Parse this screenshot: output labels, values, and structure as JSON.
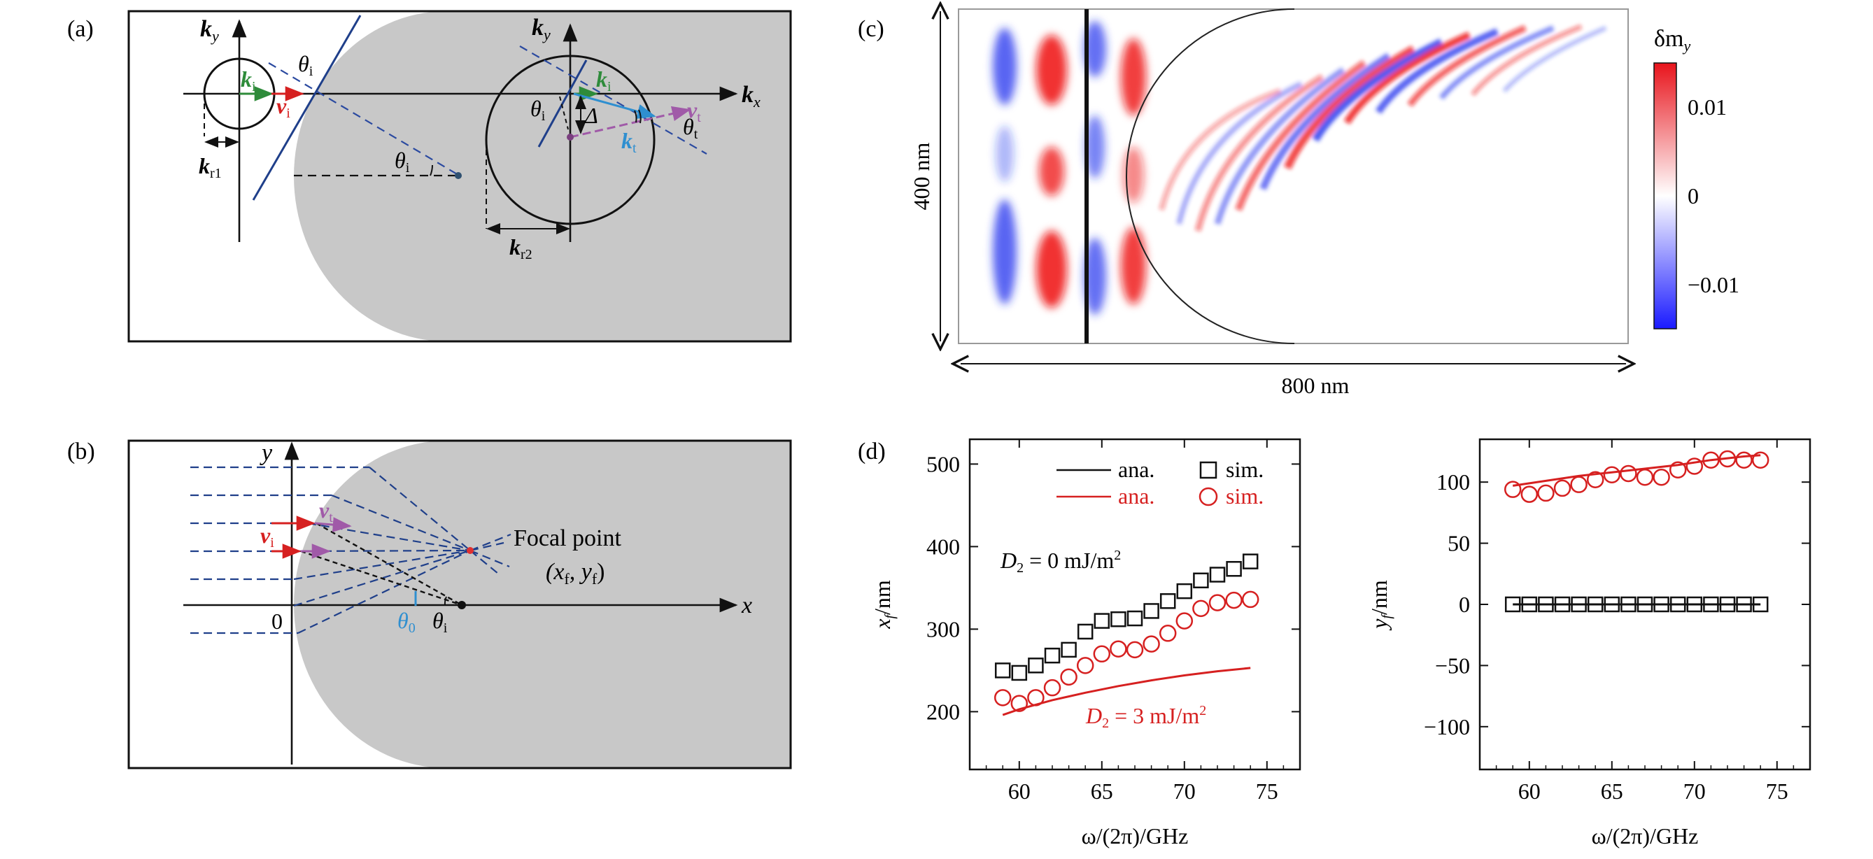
{
  "colors": {
    "gray": "#c8c8c8",
    "navy": "#1f3f8a",
    "dash_blue": "#2b4aa0",
    "green": "#2e8b3a",
    "red": "#d62020",
    "purple": "#a05aa8",
    "light_blue": "#2f8fd0",
    "black": "#111111"
  },
  "panel_a": {
    "label": "(a)",
    "ky": "k",
    "ky_sub": "y",
    "kx": "k",
    "kx_sub": "x",
    "ki": "k",
    "ki_sub": "i",
    "vi": "v",
    "vi_sub": "i",
    "kr1": "k",
    "kr1_sub": "r1",
    "kr2": "k",
    "kr2_sub": "r2",
    "kt": "k",
    "kt_sub": "t",
    "vt": "v",
    "vt_sub": "t",
    "theta_i": "θ",
    "theta_i_sub": "i",
    "theta_t": "θ",
    "theta_t_sub": "t",
    "delta": "Δ"
  },
  "panel_b": {
    "label": "(b)",
    "y_axis": "y",
    "x_axis": "x",
    "origin": "0",
    "vi": "v",
    "vi_sub": "i",
    "vt": "v",
    "vt_sub": "t",
    "focal_label": "Focal point",
    "focal_coord_open": "(x",
    "focal_coord_x_sub": "f",
    "focal_coord_mid": ", y",
    "focal_coord_y_sub": "f",
    "focal_coord_close": ")",
    "theta_0": "θ",
    "theta_0_sub": "0",
    "theta_i": "θ",
    "theta_i_sub": "i"
  },
  "panel_c": {
    "label": "(c)",
    "height_label": "400 nm",
    "width_label": "800 nm",
    "colorbar_title": "δm",
    "colorbar_title_sub": "y",
    "colorbar_ticks": [
      "0.01",
      "0",
      "−0.01"
    ]
  },
  "chart_data": [
    {
      "type": "scatter",
      "panel": "(d) left",
      "xlabel": "ω/(2π)/GHz",
      "ylabel": "x_f/nm",
      "xlim": [
        57,
        77
      ],
      "ylim": [
        130,
        530
      ],
      "xticks": [
        60,
        65,
        70,
        75
      ],
      "yticks": [
        200,
        300,
        400,
        500
      ],
      "legend": [
        {
          "line_label": "ana.",
          "marker_label": "sim.",
          "color": "black",
          "marker": "square"
        },
        {
          "line_label": "ana.",
          "marker_label": "sim.",
          "color": "red",
          "marker": "circle"
        }
      ],
      "annotations": [
        {
          "text": "D₂ = 0 mJ/m²",
          "color": "black"
        },
        {
          "text": "D₂ = 3 mJ/m²",
          "color": "red"
        }
      ],
      "series": [
        {
          "name": "D2=0 sim.",
          "color": "black",
          "marker": "square",
          "x": [
            59,
            60,
            61,
            62,
            63,
            64,
            65,
            66,
            67,
            68,
            69,
            70,
            71,
            72,
            73,
            74
          ],
          "y": [
            250,
            247,
            256,
            268,
            275,
            297,
            310,
            312,
            313,
            322,
            334,
            346,
            359,
            366,
            373,
            382
          ]
        },
        {
          "name": "D2=3 sim.",
          "color": "red",
          "marker": "circle",
          "x": [
            59,
            60,
            61,
            62,
            63,
            64,
            65,
            66,
            67,
            68,
            69,
            70,
            71,
            72,
            73,
            74
          ],
          "y": [
            217,
            210,
            217,
            229,
            242,
            256,
            270,
            276,
            275,
            282,
            295,
            310,
            325,
            332,
            335,
            336
          ]
        },
        {
          "name": "D2=3 ana.",
          "color": "red",
          "marker": "line",
          "x": [
            59,
            60,
            62,
            64,
            66,
            68,
            70,
            72,
            74
          ],
          "y": [
            196,
            203,
            214,
            223,
            231,
            238,
            244,
            249,
            253
          ]
        }
      ]
    },
    {
      "type": "scatter",
      "panel": "(d) right",
      "xlabel": "ω/(2π)/GHz",
      "ylabel": "y_f/nm",
      "xlim": [
        57,
        77
      ],
      "ylim": [
        -135,
        135
      ],
      "xticks": [
        60,
        65,
        70,
        75
      ],
      "yticks": [
        100,
        50,
        0,
        -50,
        -100
      ],
      "ytick_labels": [
        "100",
        "50",
        "0",
        "−50",
        "−100"
      ],
      "series": [
        {
          "name": "D2=0 sim.",
          "color": "black",
          "marker": "square",
          "x": [
            59,
            60,
            61,
            62,
            63,
            64,
            65,
            66,
            67,
            68,
            69,
            70,
            71,
            72,
            73,
            74
          ],
          "y": [
            0,
            0,
            0,
            0,
            0,
            0,
            0,
            0,
            0,
            0,
            0,
            0,
            0,
            0,
            0,
            0
          ]
        },
        {
          "name": "D2=0 ana.",
          "color": "black",
          "marker": "line",
          "x": [
            59,
            74
          ],
          "y": [
            0,
            0
          ]
        },
        {
          "name": "D2=3 sim.",
          "color": "red",
          "marker": "circle",
          "x": [
            59,
            60,
            61,
            62,
            63,
            64,
            65,
            66,
            67,
            68,
            69,
            70,
            71,
            72,
            73,
            74
          ],
          "y": [
            94,
            90,
            91,
            95,
            98,
            102,
            106,
            107,
            104,
            104,
            110,
            113,
            118,
            119,
            118,
            118
          ]
        },
        {
          "name": "D2=3 ana.",
          "color": "red",
          "marker": "line",
          "x": [
            59,
            61,
            63,
            65,
            67,
            69,
            71,
            73,
            74
          ],
          "y": [
            97,
            101,
            105,
            108,
            111,
            114,
            118,
            121,
            122
          ]
        }
      ]
    }
  ],
  "panel_d": {
    "label": "(d)",
    "legend_ana": "ana.",
    "legend_sim": "sim.",
    "d2_zero": "D",
    "d2_zero_sub": "2",
    "d2_zero_rest": " = 0 mJ/m",
    "d2_three": "D",
    "d2_three_sub": "2",
    "d2_three_rest": " = 3 mJ/m",
    "sup2": "2",
    "left_xlabel": "ω/(2π)/GHz",
    "right_xlabel": "ω/(2π)/GHz",
    "left_ylabel_var": "x",
    "left_ylabel_sub": "f",
    "left_ylabel_unit": "/nm",
    "right_ylabel_var": "y",
    "right_ylabel_sub": "f",
    "right_ylabel_unit": "/nm"
  }
}
